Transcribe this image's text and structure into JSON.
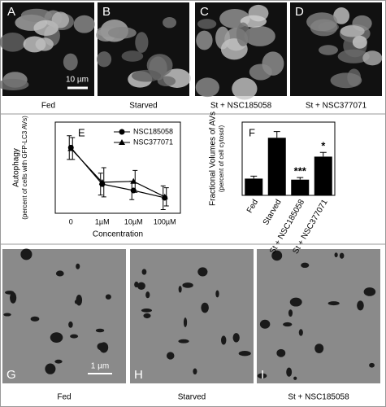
{
  "panels": [
    {
      "letter": "A",
      "caption": "Fed",
      "scale": "10 µm"
    },
    {
      "letter": "B",
      "caption": "Starved"
    },
    {
      "letter": "C",
      "caption": "St + NSC185058"
    },
    {
      "letter": "D",
      "caption": "St + NSC377071"
    }
  ],
  "chart_data": [
    {
      "type": "line",
      "letter": "E",
      "y_label": [
        "Autophagy",
        "(percent of cells with GFP-LC3 AVs)"
      ],
      "x_label": "Concentration",
      "categories": [
        "0",
        "1µM",
        "10µM",
        "100µM"
      ],
      "ylim": [
        0,
        100
      ],
      "series": [
        {
          "name": "NSC185058",
          "marker": "circle",
          "color": "#000000",
          "values": [
            72,
            32,
            25,
            17
          ],
          "errors": [
            13,
            12,
            10,
            13
          ]
        },
        {
          "name": "NSC377071",
          "marker": "triangle",
          "color": "#000000",
          "values": [
            71,
            34,
            35,
            18
          ],
          "errors": [
            12,
            16,
            12,
            10
          ]
        }
      ]
    },
    {
      "type": "bar",
      "letter": "F",
      "y_label": [
        "Fractional Volumes of AVs",
        "(percent of cell cytosol)"
      ],
      "categories": [
        "Fed",
        "Starved",
        "St + NSC185058",
        "St + NSC377071"
      ],
      "values": [
        0.8,
        2.75,
        0.75,
        1.85
      ],
      "errors": [
        0.12,
        0.3,
        0.1,
        0.2
      ],
      "significance": [
        null,
        null,
        "***",
        "*"
      ],
      "color": "#000000",
      "ylim": [
        0,
        3.5
      ]
    }
  ],
  "em_panels": [
    {
      "letter": "G",
      "caption": "Fed",
      "scale": "1 µm"
    },
    {
      "letter": "H",
      "caption": "Starved"
    },
    {
      "letter": "I",
      "caption": "St + NSC185058"
    }
  ]
}
